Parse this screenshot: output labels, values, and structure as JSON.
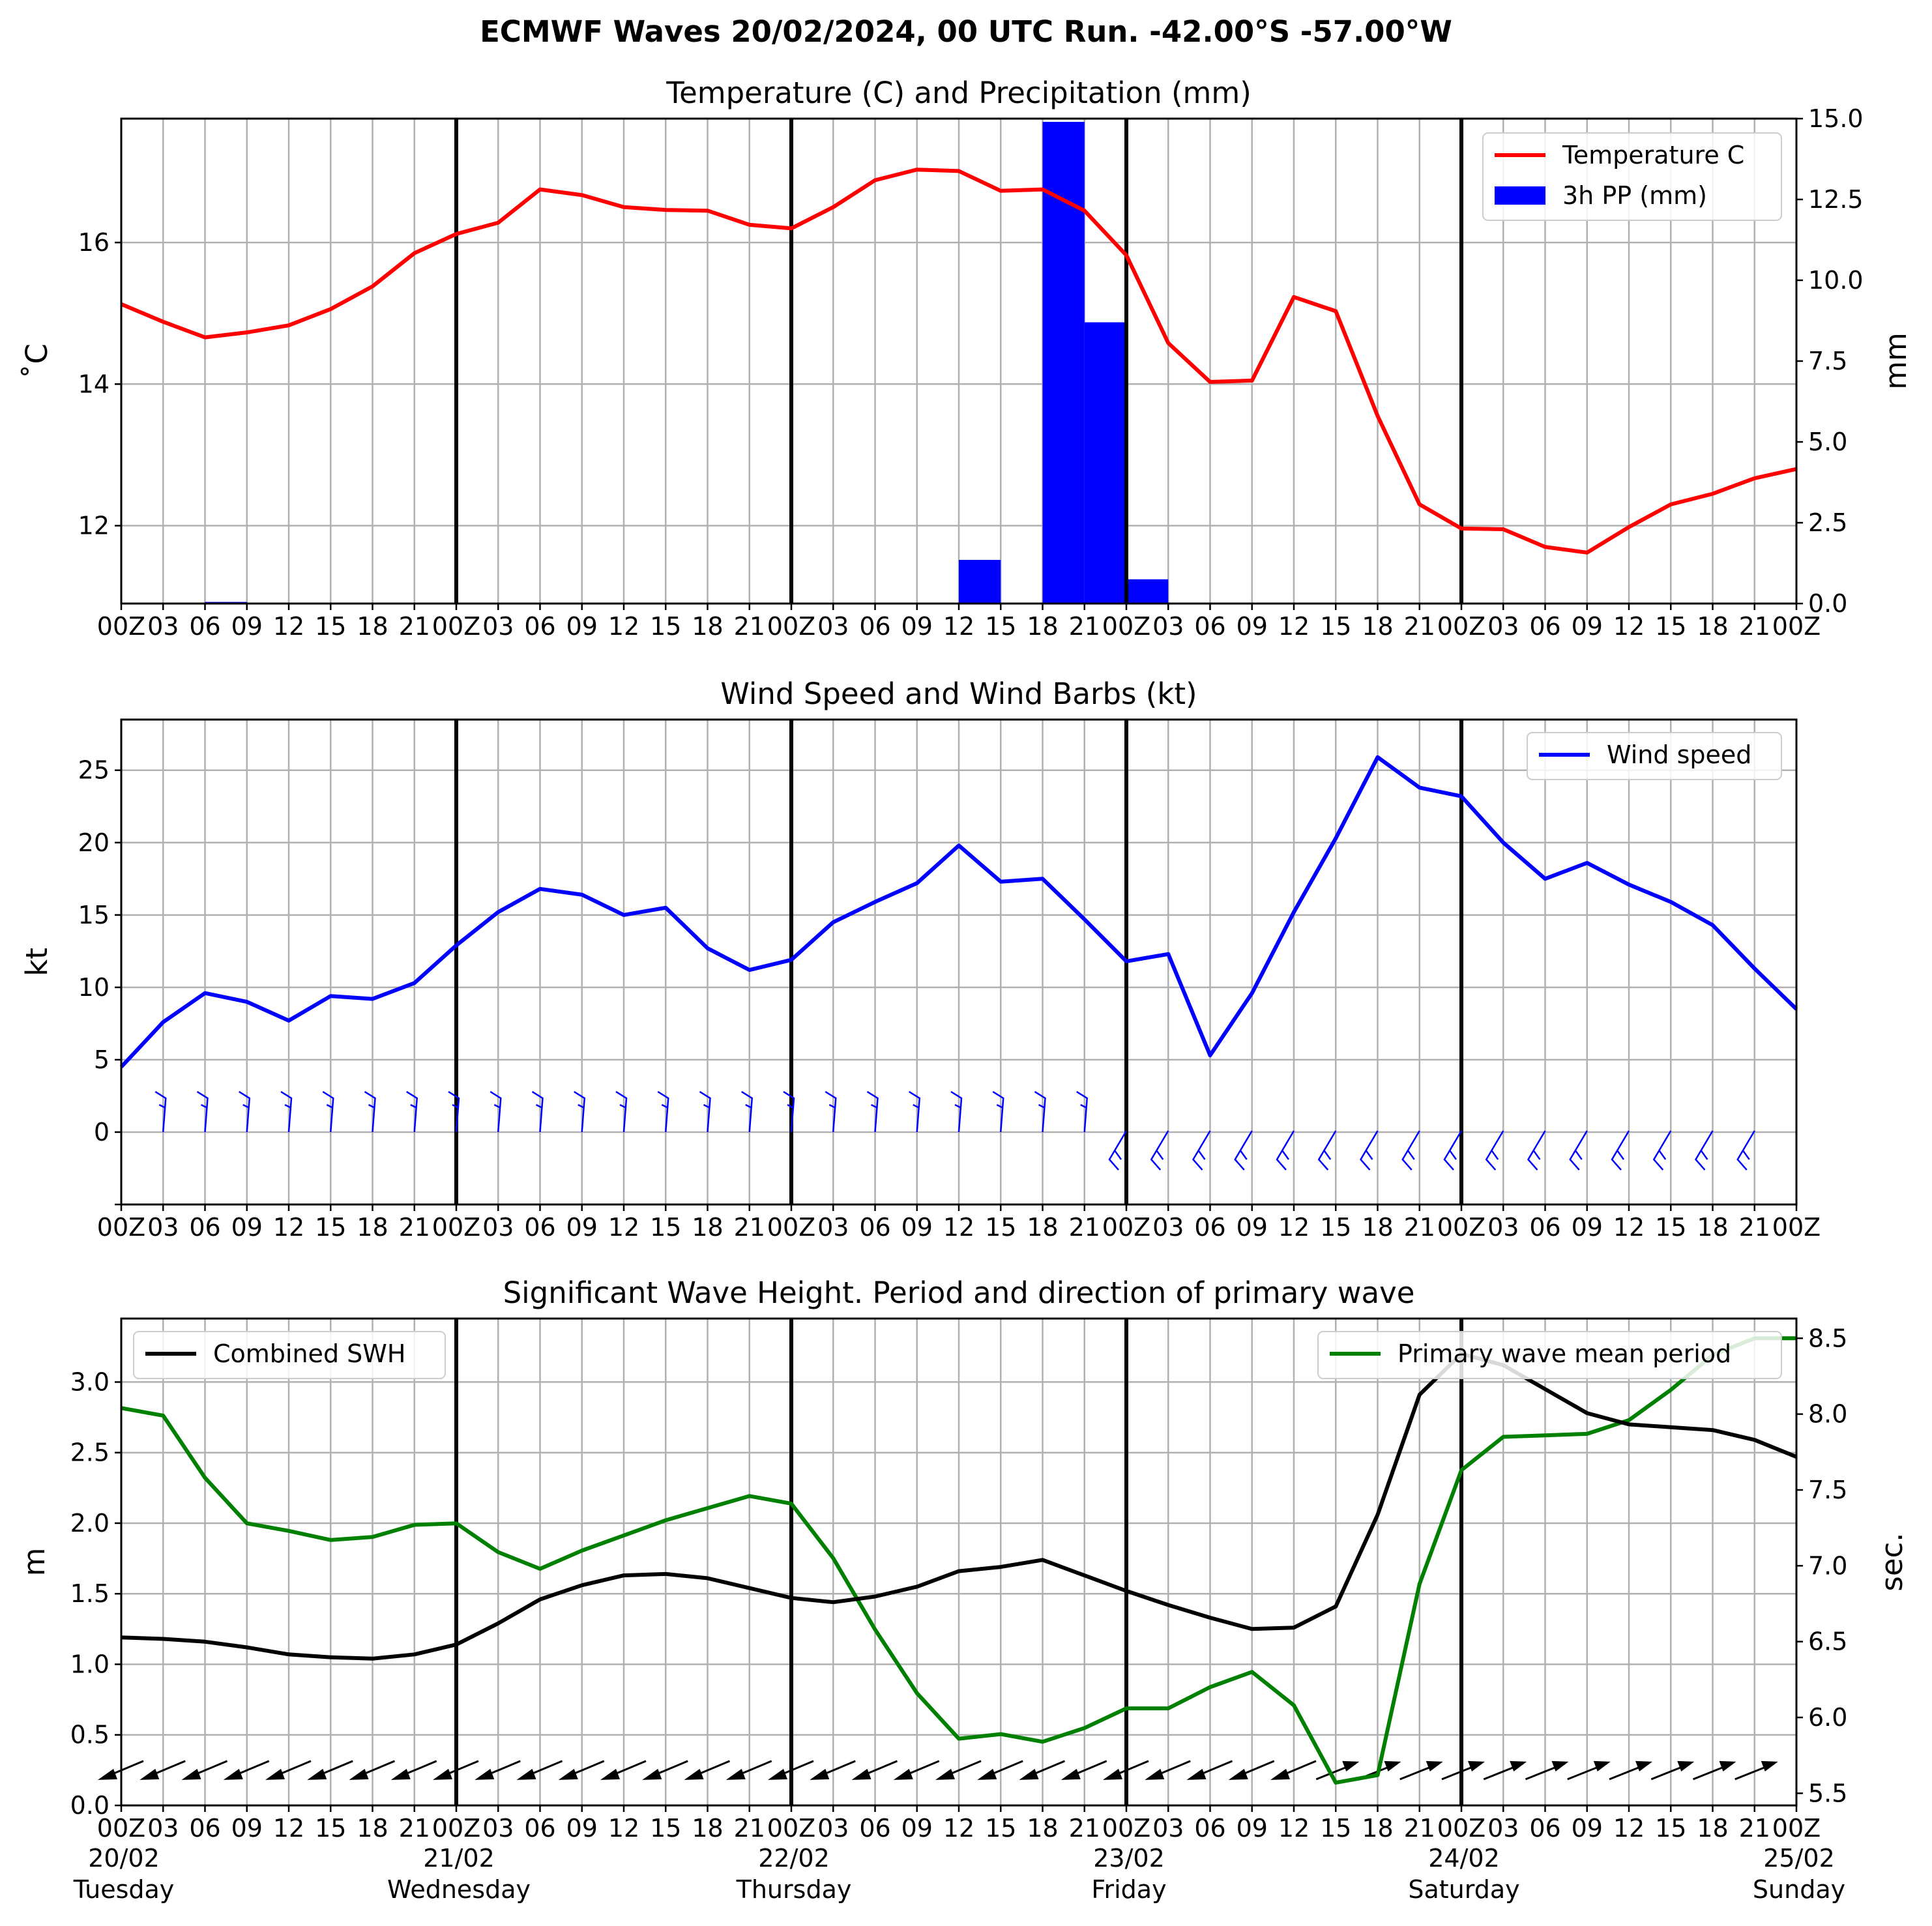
{
  "suptitle": "ECMWF Waves 20/02/2024, 00 UTC Run. -42.00°S -57.00°W",
  "x_tick_labels": [
    "00Z",
    "03",
    "06",
    "09",
    "12",
    "15",
    "18",
    "21",
    "00Z",
    "03",
    "06",
    "09",
    "12",
    "15",
    "18",
    "21",
    "00Z",
    "03",
    "06",
    "09",
    "12",
    "15",
    "18",
    "21",
    "00Z",
    "03",
    "06",
    "09",
    "12",
    "15",
    "18",
    "21",
    "00Z",
    "03",
    "06",
    "09",
    "12",
    "15",
    "18",
    "21",
    "00Z"
  ],
  "day_labels": [
    {
      "date": "20/02",
      "weekday": "Tuesday"
    },
    {
      "date": "21/02",
      "weekday": "Wednesday"
    },
    {
      "date": "22/02",
      "weekday": "Thursday"
    },
    {
      "date": "23/02",
      "weekday": "Friday"
    },
    {
      "date": "24/02",
      "weekday": "Saturday"
    },
    {
      "date": "25/02",
      "weekday": "Sunday"
    }
  ],
  "chart_data": [
    {
      "type": "line",
      "title": "Temperature (C) and Precipitation (mm)",
      "xlabel": "",
      "ylabel": "$^\\circ$C",
      "ylabel_display": "˚C",
      "y2label": "mm",
      "ylim": [
        10.9,
        17.75
      ],
      "yticks": [
        12,
        14,
        16
      ],
      "y2lim": [
        0,
        15.0
      ],
      "y2ticks": [
        "0.0",
        "2.5",
        "5.0",
        "7.5",
        "10.0",
        "12.5",
        "15.0"
      ],
      "grid": true,
      "legend_position": "top-right",
      "x_hours": [
        0,
        3,
        6,
        9,
        12,
        15,
        18,
        21,
        24,
        27,
        30,
        33,
        36,
        39,
        42,
        45,
        48,
        51,
        54,
        57,
        60,
        63,
        66,
        69,
        72,
        75,
        78,
        81,
        84,
        87,
        90,
        93,
        96,
        99,
        102,
        105,
        108,
        111,
        114,
        117,
        120
      ],
      "series": [
        {
          "name": "Temperature C",
          "color": "#ff0000",
          "axis": "left",
          "values": [
            15.13,
            14.88,
            14.66,
            14.73,
            14.83,
            15.06,
            15.38,
            15.85,
            16.12,
            16.28,
            16.75,
            16.67,
            16.5,
            16.46,
            16.45,
            16.25,
            16.2,
            16.5,
            16.88,
            17.03,
            17.01,
            16.73,
            16.75,
            16.45,
            15.82,
            14.58,
            14.03,
            14.05,
            15.23,
            15.03,
            13.55,
            12.3,
            11.96,
            11.95,
            11.7,
            11.62,
            11.98,
            12.3,
            12.45,
            12.67,
            12.8
          ]
        },
        {
          "name": "3h PP (mm)",
          "color": "#0000ff",
          "axis": "right",
          "kind": "bar",
          "bars": [
            {
              "start": 6,
              "end": 9,
              "value": 0.05
            },
            {
              "start": 9,
              "end": 12,
              "value": 0.02
            },
            {
              "start": 60,
              "end": 63,
              "value": 1.35
            },
            {
              "start": 66,
              "end": 69,
              "value": 14.9
            },
            {
              "start": 69,
              "end": 72,
              "value": 8.7
            },
            {
              "start": 72,
              "end": 75,
              "value": 0.75
            }
          ]
        }
      ]
    },
    {
      "type": "line",
      "title": "Wind Speed and Wind Barbs (kt)",
      "xlabel": "",
      "ylabel": "kt",
      "ylim": [
        -5,
        28.5
      ],
      "yticks": [
        0,
        5,
        10,
        15,
        20,
        25
      ],
      "grid": true,
      "legend_position": "top-right",
      "x_hours": [
        0,
        3,
        6,
        9,
        12,
        15,
        18,
        21,
        24,
        27,
        30,
        33,
        36,
        39,
        42,
        45,
        48,
        51,
        54,
        57,
        60,
        63,
        66,
        69,
        72,
        75,
        78,
        81,
        84,
        87,
        90,
        93,
        96,
        99,
        102,
        105,
        108,
        111,
        114,
        117,
        120
      ],
      "series": [
        {
          "name": "Wind speed",
          "color": "#0000ff",
          "values": [
            4.5,
            7.6,
            9.6,
            9.0,
            7.7,
            9.4,
            9.2,
            10.3,
            12.9,
            15.2,
            16.8,
            16.4,
            15.0,
            15.5,
            12.7,
            11.2,
            11.9,
            14.5,
            15.9,
            17.2,
            19.8,
            17.3,
            17.5,
            14.7,
            11.8,
            12.3,
            5.3,
            9.6,
            15.2,
            20.3,
            25.9,
            23.8,
            23.2,
            20.0,
            17.5,
            18.6,
            17.1,
            15.9,
            14.3,
            11.3,
            8.5
          ]
        }
      ],
      "barbs_from_north": [
        true,
        true,
        true,
        true,
        true,
        true,
        true,
        true,
        true,
        true,
        true,
        true,
        true,
        true,
        true,
        true,
        true,
        true,
        true,
        true,
        true,
        true,
        true,
        true,
        false,
        false,
        false,
        false,
        false,
        false,
        false,
        false,
        false,
        false,
        false,
        false,
        false,
        false,
        false,
        false,
        false
      ]
    },
    {
      "type": "line",
      "title": "Significant Wave Height. Period and direction of primary wave",
      "xlabel": "",
      "ylabel": "m",
      "y2label": "sec.",
      "ylim": [
        0.0,
        3.45
      ],
      "yticks": [
        "0.0",
        "0.5",
        "1.0",
        "1.5",
        "2.0",
        "2.5",
        "3.0"
      ],
      "y2lim": [
        5.42,
        8.63
      ],
      "y2ticks": [
        "5.5",
        "6.0",
        "6.5",
        "7.0",
        "7.5",
        "8.0",
        "8.5"
      ],
      "grid": true,
      "x_hours": [
        0,
        3,
        6,
        9,
        12,
        15,
        18,
        21,
        24,
        27,
        30,
        33,
        36,
        39,
        42,
        45,
        48,
        51,
        54,
        57,
        60,
        63,
        66,
        69,
        72,
        75,
        78,
        81,
        84,
        87,
        90,
        93,
        96,
        99,
        102,
        105,
        108,
        111,
        114,
        117,
        120
      ],
      "series": [
        {
          "name": "Combined SWH",
          "color": "#000000",
          "axis": "left",
          "legend_position": "top-left",
          "values": [
            1.19,
            1.18,
            1.16,
            1.12,
            1.07,
            1.05,
            1.04,
            1.07,
            1.14,
            1.29,
            1.46,
            1.56,
            1.63,
            1.64,
            1.61,
            1.54,
            1.47,
            1.44,
            1.48,
            1.55,
            1.66,
            1.69,
            1.74,
            1.63,
            1.52,
            1.42,
            1.33,
            1.25,
            1.26,
            1.41,
            2.06,
            2.91,
            3.2,
            3.12,
            2.95,
            2.78,
            2.7,
            2.68,
            2.66,
            2.59,
            2.47
          ]
        },
        {
          "name": "Primary wave mean period",
          "color": "#008000",
          "axis": "right",
          "legend_position": "top-right",
          "values": [
            8.04,
            7.99,
            7.58,
            7.28,
            7.23,
            7.17,
            7.19,
            7.27,
            7.28,
            7.09,
            6.98,
            7.1,
            7.2,
            7.3,
            7.38,
            7.46,
            7.41,
            7.05,
            6.58,
            6.16,
            5.86,
            5.89,
            5.84,
            5.93,
            6.06,
            6.06,
            6.2,
            6.3,
            6.08,
            5.57,
            5.62,
            6.88,
            7.63,
            7.85,
            7.86,
            7.87,
            7.96,
            8.16,
            8.39,
            8.5,
            8.5
          ]
        }
      ],
      "wave_direction_points_west": [
        true,
        true,
        true,
        true,
        true,
        true,
        true,
        true,
        true,
        true,
        true,
        true,
        true,
        true,
        true,
        true,
        true,
        true,
        true,
        true,
        true,
        true,
        true,
        true,
        true,
        true,
        true,
        true,
        true,
        false,
        false,
        false,
        false,
        false,
        false,
        false,
        false,
        false,
        false,
        false,
        false
      ]
    }
  ]
}
